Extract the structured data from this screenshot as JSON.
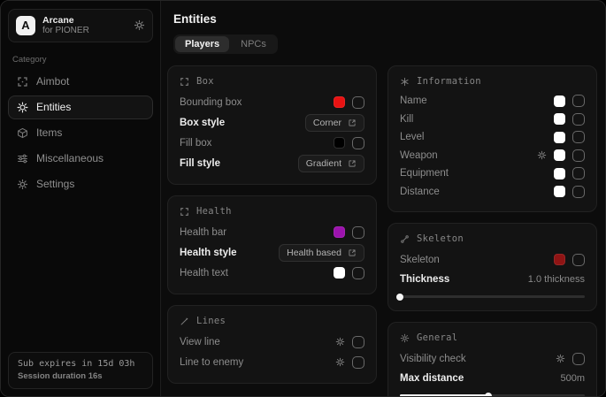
{
  "sidebar": {
    "brand": {
      "name": "Arcane",
      "subtitle": "for PIONER",
      "logo_letter": "A",
      "icon": "brand-gear-icon"
    },
    "category_label": "Category",
    "items": [
      {
        "label": "Aimbot",
        "icon": "aimbot-crosshair-icon",
        "selected": false
      },
      {
        "label": "Entities",
        "icon": "entities-radar-icon",
        "selected": true
      },
      {
        "label": "Items",
        "icon": "items-package-icon",
        "selected": false
      },
      {
        "label": "Miscellaneous",
        "icon": "miscellaneous-sliders-icon",
        "selected": false
      },
      {
        "label": "Settings",
        "icon": "settings-gear-icon",
        "selected": false
      }
    ],
    "footer": {
      "line1": "Sub expires in 15d 03h",
      "line2": "Session duration 16s"
    }
  },
  "main": {
    "title": "Entities",
    "tabs": [
      {
        "label": "Players",
        "active": true
      },
      {
        "label": "NPCs",
        "active": false
      }
    ],
    "panels": {
      "box": {
        "header": "Box",
        "icon": "box-corners-icon",
        "rows": [
          {
            "label": "Bounding box",
            "control": "color-checkbox",
            "swatch": "#e81212",
            "checked": false
          },
          {
            "label": "Box style",
            "control": "dropdown",
            "value": "Corner",
            "icon": "expand-icon"
          },
          {
            "label": "Fill box",
            "control": "color-checkbox",
            "swatch": "#000000",
            "checked": false
          },
          {
            "label": "Fill style",
            "control": "dropdown",
            "value": "Gradient",
            "icon": "expand-icon"
          }
        ]
      },
      "health": {
        "header": "Health",
        "icon": "health-brackets-icon",
        "rows": [
          {
            "label": "Health bar",
            "control": "color-checkbox",
            "swatch": "#9c13ad",
            "checked": false
          },
          {
            "label": "Health style",
            "control": "dropdown",
            "value": "Health based",
            "icon": "expand-icon"
          },
          {
            "label": "Health text",
            "control": "color-checkbox",
            "swatch": "#ffffff",
            "checked": false
          }
        ]
      },
      "lines": {
        "header": "Lines",
        "icon": "line-pencil-icon",
        "rows": [
          {
            "label": "View line",
            "control": "settings-checkbox",
            "icon": "gear-icon",
            "checked": false
          },
          {
            "label": "Line to enemy",
            "control": "settings-checkbox",
            "icon": "gear-icon",
            "checked": false
          }
        ]
      },
      "information": {
        "header": "Information",
        "icon": "info-burst-icon",
        "rows": [
          {
            "label": "Name",
            "control": "color-checkbox",
            "swatch": "#ffffff",
            "checked": false
          },
          {
            "label": "Kill",
            "control": "color-checkbox",
            "swatch": "#ffffff",
            "checked": false
          },
          {
            "label": "Level",
            "control": "color-checkbox",
            "swatch": "#ffffff",
            "checked": false
          },
          {
            "label": "Weapon",
            "control": "color-checkbox",
            "has_settings": true,
            "icon": "gear-icon",
            "swatch": "#ffffff",
            "checked": false
          },
          {
            "label": "Equipment",
            "control": "color-checkbox",
            "swatch": "#ffffff",
            "checked": false
          },
          {
            "label": "Distance",
            "control": "color-checkbox",
            "swatch": "#ffffff",
            "checked": false
          }
        ]
      },
      "skeleton": {
        "header": "Skeleton",
        "icon": "bone-icon",
        "rows": [
          {
            "label": "Skeleton",
            "control": "color-checkbox",
            "swatch": "#8f1414",
            "checked": false
          }
        ],
        "slider": {
          "label": "Thickness",
          "value": "1.0 thickness",
          "fill": "0%"
        }
      },
      "general": {
        "header": "General",
        "icon": "sun-icon",
        "rows": [
          {
            "label": "Visibility check",
            "control": "settings-checkbox",
            "icon": "gear-icon",
            "checked": false
          }
        ],
        "slider": {
          "label": "Max distance",
          "value": "500m",
          "fill": "48%"
        }
      }
    }
  },
  "colors": {
    "accent_red": "#e81212",
    "accent_purple": "#9c13ad",
    "accent_dark_red": "#8f1414",
    "panel_bg": "#131313",
    "window_bg": "#0b0b0b"
  }
}
